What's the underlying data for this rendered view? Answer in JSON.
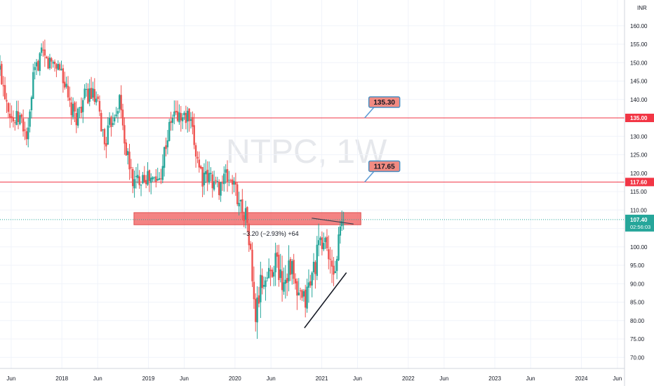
{
  "chart_data": {
    "type": "candlestick",
    "watermark": "NTPC, 1W",
    "currency": "INR",
    "y_axis": {
      "min": 67,
      "max": 167,
      "ticks": [
        70,
        75,
        80,
        85,
        90,
        95,
        100,
        105,
        110,
        115,
        120,
        125,
        130,
        135,
        140,
        145,
        150,
        155,
        160
      ]
    },
    "x_axis": {
      "start": "2017-04-15",
      "end": "2024-07-01",
      "ticks": [
        {
          "label": "Jun",
          "date": "2017-06-01"
        },
        {
          "label": "2018",
          "date": "2018-01-01"
        },
        {
          "label": "Jun",
          "date": "2018-06-01"
        },
        {
          "label": "2019",
          "date": "2019-01-01"
        },
        {
          "label": "Jun",
          "date": "2019-06-01"
        },
        {
          "label": "2020",
          "date": "2020-01-01"
        },
        {
          "label": "Jun",
          "date": "2020-06-01"
        },
        {
          "label": "2021",
          "date": "2021-01-01"
        },
        {
          "label": "Jun",
          "date": "2021-06-01"
        },
        {
          "label": "2022",
          "date": "2022-01-01"
        },
        {
          "label": "Jun",
          "date": "2022-06-01"
        },
        {
          "label": "2023",
          "date": "2023-01-01"
        },
        {
          "label": "Jun",
          "date": "2023-06-01"
        },
        {
          "label": "2024",
          "date": "2024-01-01"
        },
        {
          "label": "Jun",
          "date": "2024-06-01"
        }
      ]
    },
    "price_path": [
      [
        "2017-04-15",
        148
      ],
      [
        "2017-05-10",
        141
      ],
      [
        "2017-06-10",
        134
      ],
      [
        "2017-07-10",
        135
      ],
      [
        "2017-08-10",
        129
      ],
      [
        "2017-09-01",
        145
      ],
      [
        "2017-10-01",
        152
      ],
      [
        "2017-11-01",
        150
      ],
      [
        "2017-12-01",
        150
      ],
      [
        "2018-01-01",
        148
      ],
      [
        "2018-02-01",
        138
      ],
      [
        "2018-03-01",
        135
      ],
      [
        "2018-04-01",
        140
      ],
      [
        "2018-05-01",
        142
      ],
      [
        "2018-06-01",
        138
      ],
      [
        "2018-07-01",
        128
      ],
      [
        "2018-08-01",
        135
      ],
      [
        "2018-09-01",
        140
      ],
      [
        "2018-10-01",
        125
      ],
      [
        "2018-11-01",
        117
      ],
      [
        "2018-12-10",
        120
      ],
      [
        "2019-01-10",
        118
      ],
      [
        "2019-02-15",
        118
      ],
      [
        "2019-03-15",
        128
      ],
      [
        "2019-04-15",
        136
      ],
      [
        "2019-05-20",
        135
      ],
      [
        "2019-06-20",
        135
      ],
      [
        "2019-07-20",
        126
      ],
      [
        "2019-08-20",
        118
      ],
      [
        "2019-09-20",
        119
      ],
      [
        "2019-10-20",
        116
      ],
      [
        "2019-11-20",
        119
      ],
      [
        "2019-12-20",
        118
      ],
      [
        "2020-01-20",
        112
      ],
      [
        "2020-02-20",
        108
      ],
      [
        "2020-03-10",
        95
      ],
      [
        "2020-03-25",
        80
      ],
      [
        "2020-04-20",
        90
      ],
      [
        "2020-05-20",
        92
      ],
      [
        "2020-06-20",
        97
      ],
      [
        "2020-07-20",
        90
      ],
      [
        "2020-08-20",
        96
      ],
      [
        "2020-09-20",
        86
      ],
      [
        "2020-10-20",
        85
      ],
      [
        "2020-11-20",
        92
      ],
      [
        "2020-12-20",
        100
      ],
      [
        "2021-01-20",
        102
      ],
      [
        "2021-02-10",
        92
      ],
      [
        "2021-03-01",
        95
      ],
      [
        "2021-03-20",
        105
      ],
      [
        "2021-04-05",
        107.4
      ]
    ],
    "horizontal_lines": [
      {
        "value": 135.0,
        "axis_label": "135.00",
        "callout": "135.30"
      },
      {
        "value": 117.6,
        "axis_label": "117.60",
        "callout": "117.65"
      }
    ],
    "current_price": {
      "value": 107.4,
      "label": "107.40",
      "countdown": "02:56:03"
    },
    "zone": {
      "from": "2018-11-01",
      "to": "2021-06-15",
      "low": 106.0,
      "high": 109.3
    },
    "trendline_support": {
      "from": [
        "2020-10-20",
        78.0
      ],
      "to": [
        "2021-04-15",
        93.0
      ]
    },
    "trendline_resistance": {
      "from": [
        "2020-11-20",
        107.8
      ],
      "to": [
        "2021-05-15",
        106.2
      ]
    },
    "measure_label": "−3.20 (−2.93%) +64",
    "measure_label_pos": [
      "2020-03-15",
      103
    ]
  }
}
